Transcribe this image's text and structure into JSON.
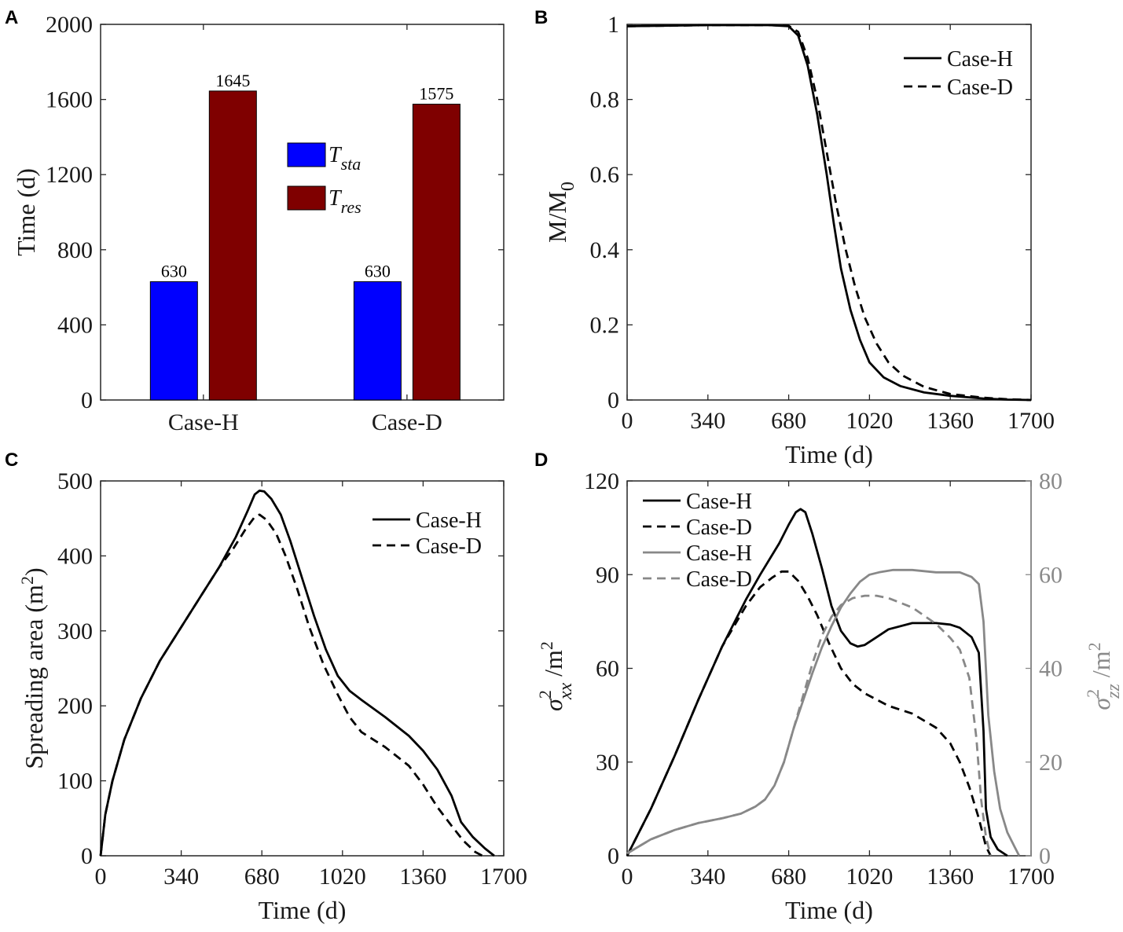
{
  "figure": {
    "panels": [
      "A",
      "B",
      "C",
      "D"
    ]
  },
  "chart_data": [
    {
      "id": "A",
      "type": "bar",
      "title": "",
      "xlabel": "",
      "ylabel": "Time (d)",
      "ylim": [
        0,
        2000
      ],
      "yticks": [
        0,
        400,
        800,
        1200,
        1600,
        2000
      ],
      "categories": [
        "Case-H",
        "Case-D"
      ],
      "series": [
        {
          "name": "T",
          "sub": "sta",
          "color": "#0000ff",
          "values": [
            630,
            630
          ]
        },
        {
          "name": "T",
          "sub": "res",
          "color": "#7f0000",
          "values": [
            1645,
            1575
          ]
        }
      ],
      "data_labels": [
        [
          "630",
          "1645"
        ],
        [
          "630",
          "1575"
        ]
      ],
      "legend": "center"
    },
    {
      "id": "B",
      "type": "line",
      "xlabel": "Time (d)",
      "ylabel": "M/M",
      "ylabel_sub": "0",
      "xlim": [
        0,
        1700
      ],
      "ylim": [
        0,
        1
      ],
      "xticks": [
        0,
        340,
        680,
        1020,
        1360,
        1700
      ],
      "yticks": [
        0,
        0.2,
        0.4,
        0.6,
        0.8,
        1
      ],
      "ytick_labels": [
        "0",
        "0.2",
        "0.4",
        "0.6",
        "0.8",
        "1"
      ],
      "legend": "top-right",
      "series": [
        {
          "name": "Case-H",
          "style": "solid",
          "color": "#000000",
          "points": [
            [
              0,
              0.995
            ],
            [
              340,
              0.998
            ],
            [
              600,
              0.998
            ],
            [
              680,
              0.995
            ],
            [
              720,
              0.97
            ],
            [
              760,
              0.89
            ],
            [
              800,
              0.76
            ],
            [
              840,
              0.6
            ],
            [
              870,
              0.47
            ],
            [
              900,
              0.35
            ],
            [
              940,
              0.24
            ],
            [
              980,
              0.16
            ],
            [
              1020,
              0.1
            ],
            [
              1080,
              0.06
            ],
            [
              1150,
              0.037
            ],
            [
              1250,
              0.02
            ],
            [
              1360,
              0.011
            ],
            [
              1500,
              0.004
            ],
            [
              1600,
              0.001
            ],
            [
              1700,
              0
            ]
          ]
        },
        {
          "name": "Case-D",
          "style": "dashed",
          "color": "#000000",
          "points": [
            [
              0,
              0.995
            ],
            [
              340,
              0.998
            ],
            [
              600,
              0.998
            ],
            [
              680,
              0.996
            ],
            [
              720,
              0.98
            ],
            [
              760,
              0.91
            ],
            [
              800,
              0.8
            ],
            [
              840,
              0.66
            ],
            [
              880,
              0.52
            ],
            [
              920,
              0.4
            ],
            [
              960,
              0.3
            ],
            [
              1000,
              0.22
            ],
            [
              1050,
              0.15
            ],
            [
              1100,
              0.1
            ],
            [
              1160,
              0.065
            ],
            [
              1250,
              0.035
            ],
            [
              1360,
              0.016
            ],
            [
              1500,
              0.006
            ],
            [
              1600,
              0.002
            ],
            [
              1700,
              0
            ]
          ]
        }
      ]
    },
    {
      "id": "C",
      "type": "line",
      "xlabel": "Time (d)",
      "ylabel": "Spreading area (m",
      "ylabel_sup": "2",
      "ylabel_close": ")",
      "xlim": [
        0,
        1700
      ],
      "ylim": [
        0,
        500
      ],
      "xticks": [
        0,
        340,
        680,
        1020,
        1360,
        1700
      ],
      "yticks": [
        0,
        100,
        200,
        300,
        400,
        500
      ],
      "legend": "top-right",
      "series": [
        {
          "name": "Case-H",
          "style": "solid",
          "color": "#000000",
          "points": [
            [
              0,
              0
            ],
            [
              20,
              55
            ],
            [
              50,
              100
            ],
            [
              100,
              155
            ],
            [
              170,
              210
            ],
            [
              250,
              260
            ],
            [
              340,
              305
            ],
            [
              420,
              345
            ],
            [
              500,
              385
            ],
            [
              570,
              425
            ],
            [
              620,
              460
            ],
            [
              650,
              482
            ],
            [
              670,
              487
            ],
            [
              690,
              486
            ],
            [
              720,
              476
            ],
            [
              760,
              455
            ],
            [
              800,
              420
            ],
            [
              850,
              370
            ],
            [
              900,
              320
            ],
            [
              950,
              275
            ],
            [
              1000,
              240
            ],
            [
              1050,
              220
            ],
            [
              1100,
              208
            ],
            [
              1200,
              185
            ],
            [
              1300,
              160
            ],
            [
              1360,
              140
            ],
            [
              1420,
              115
            ],
            [
              1480,
              80
            ],
            [
              1520,
              45
            ],
            [
              1570,
              25
            ],
            [
              1620,
              10
            ],
            [
              1660,
              0
            ]
          ]
        },
        {
          "name": "Case-D",
          "style": "dashed",
          "color": "#000000",
          "points": [
            [
              0,
              0
            ],
            [
              20,
              55
            ],
            [
              50,
              100
            ],
            [
              100,
              155
            ],
            [
              170,
              210
            ],
            [
              250,
              260
            ],
            [
              340,
              305
            ],
            [
              420,
              345
            ],
            [
              500,
              385
            ],
            [
              560,
              410
            ],
            [
              610,
              435
            ],
            [
              650,
              452
            ],
            [
              670,
              455
            ],
            [
              700,
              448
            ],
            [
              740,
              430
            ],
            [
              780,
              400
            ],
            [
              830,
              355
            ],
            [
              880,
              305
            ],
            [
              940,
              255
            ],
            [
              1000,
              215
            ],
            [
              1050,
              185
            ],
            [
              1100,
              165
            ],
            [
              1200,
              145
            ],
            [
              1300,
              120
            ],
            [
              1360,
              95
            ],
            [
              1420,
              65
            ],
            [
              1480,
              40
            ],
            [
              1530,
              20
            ],
            [
              1580,
              5
            ],
            [
              1610,
              0
            ]
          ]
        }
      ]
    },
    {
      "id": "D",
      "type": "line",
      "xlabel": "Time (d)",
      "ylabel_left": "σ",
      "ylabel_left_sup": "2",
      "ylabel_left_sub": "xx",
      "ylabel_left_unit": " /m",
      "ylabel_left_unit_sup": "2",
      "ylabel_right": "σ",
      "ylabel_right_sup": "2",
      "ylabel_right_sub": "zz",
      "ylabel_right_unit": " /m",
      "ylabel_right_unit_sup": "2",
      "xlim": [
        0,
        1700
      ],
      "ylim_left": [
        0,
        120
      ],
      "ylim_right": [
        0,
        80
      ],
      "xticks": [
        0,
        340,
        680,
        1020,
        1360,
        1700
      ],
      "yticks_left": [
        0,
        30,
        60,
        90,
        120
      ],
      "yticks_right": [
        0,
        20,
        40,
        60,
        80
      ],
      "legend": "top-left",
      "series": [
        {
          "name": "Case-H",
          "axis": "left",
          "style": "solid",
          "color": "#000000",
          "points": [
            [
              0,
              0
            ],
            [
              100,
              15
            ],
            [
              200,
              32
            ],
            [
              300,
              50
            ],
            [
              400,
              67
            ],
            [
              500,
              82
            ],
            [
              560,
              90
            ],
            [
              600,
              95
            ],
            [
              640,
              100
            ],
            [
              680,
              106
            ],
            [
              710,
              110
            ],
            [
              730,
              111
            ],
            [
              750,
              110
            ],
            [
              780,
              103
            ],
            [
              820,
              92
            ],
            [
              860,
              80
            ],
            [
              900,
              72
            ],
            [
              940,
              68
            ],
            [
              970,
              67
            ],
            [
              1000,
              67.5
            ],
            [
              1050,
              70
            ],
            [
              1100,
              72.5
            ],
            [
              1200,
              74.5
            ],
            [
              1300,
              74.5
            ],
            [
              1360,
              74
            ],
            [
              1400,
              73
            ],
            [
              1450,
              70
            ],
            [
              1480,
              65
            ],
            [
              1500,
              40
            ],
            [
              1510,
              15
            ],
            [
              1530,
              6
            ],
            [
              1560,
              2
            ],
            [
              1600,
              0
            ]
          ]
        },
        {
          "name": "Case-D",
          "axis": "left",
          "style": "dashed",
          "color": "#000000",
          "points": [
            [
              0,
              0
            ],
            [
              100,
              15
            ],
            [
              200,
              32
            ],
            [
              300,
              50
            ],
            [
              400,
              67
            ],
            [
              500,
              80
            ],
            [
              560,
              86
            ],
            [
              610,
              89
            ],
            [
              650,
              91
            ],
            [
              680,
              91
            ],
            [
              720,
              88
            ],
            [
              760,
              83
            ],
            [
              800,
              77
            ],
            [
              850,
              68
            ],
            [
              900,
              60
            ],
            [
              950,
              55
            ],
            [
              1000,
              52
            ],
            [
              1050,
              50
            ],
            [
              1100,
              48
            ],
            [
              1200,
              45.5
            ],
            [
              1300,
              41
            ],
            [
              1360,
              36
            ],
            [
              1400,
              30
            ],
            [
              1440,
              22
            ],
            [
              1480,
              12
            ],
            [
              1510,
              3
            ],
            [
              1530,
              0
            ]
          ]
        },
        {
          "name": "Case-H",
          "axis": "right",
          "style": "solid",
          "color": "#888888",
          "points": [
            [
              0,
              0.5
            ],
            [
              100,
              3.5
            ],
            [
              200,
              5.5
            ],
            [
              300,
              7
            ],
            [
              400,
              8
            ],
            [
              480,
              9
            ],
            [
              540,
              10.5
            ],
            [
              580,
              12
            ],
            [
              620,
              15
            ],
            [
              660,
              20
            ],
            [
              700,
              27
            ],
            [
              740,
              33
            ],
            [
              780,
              39
            ],
            [
              820,
              44.5
            ],
            [
              860,
              49
            ],
            [
              900,
              53
            ],
            [
              940,
              56
            ],
            [
              980,
              58.5
            ],
            [
              1020,
              60
            ],
            [
              1060,
              60.5
            ],
            [
              1120,
              61
            ],
            [
              1200,
              61
            ],
            [
              1300,
              60.5
            ],
            [
              1400,
              60.5
            ],
            [
              1450,
              59.5
            ],
            [
              1480,
              58
            ],
            [
              1500,
              50
            ],
            [
              1520,
              30
            ],
            [
              1545,
              18
            ],
            [
              1570,
              10
            ],
            [
              1600,
              5
            ],
            [
              1630,
              2
            ],
            [
              1650,
              0
            ]
          ]
        },
        {
          "name": "Case-D",
          "axis": "right",
          "style": "dashed",
          "color": "#888888",
          "points": [
            [
              0,
              0.5
            ],
            [
              100,
              3.5
            ],
            [
              200,
              5.5
            ],
            [
              300,
              7
            ],
            [
              400,
              8
            ],
            [
              480,
              9
            ],
            [
              540,
              10.5
            ],
            [
              580,
              12
            ],
            [
              620,
              15
            ],
            [
              660,
              20
            ],
            [
              700,
              27
            ],
            [
              740,
              34
            ],
            [
              780,
              41
            ],
            [
              820,
              47
            ],
            [
              860,
              51
            ],
            [
              900,
              53.5
            ],
            [
              950,
              55
            ],
            [
              1000,
              55.5
            ],
            [
              1050,
              55.5
            ],
            [
              1100,
              55
            ],
            [
              1200,
              53
            ],
            [
              1300,
              49.5
            ],
            [
              1360,
              46.5
            ],
            [
              1400,
              44
            ],
            [
              1440,
              38
            ],
            [
              1470,
              25
            ],
            [
              1490,
              12
            ],
            [
              1510,
              4
            ],
            [
              1530,
              0
            ]
          ]
        }
      ]
    }
  ]
}
